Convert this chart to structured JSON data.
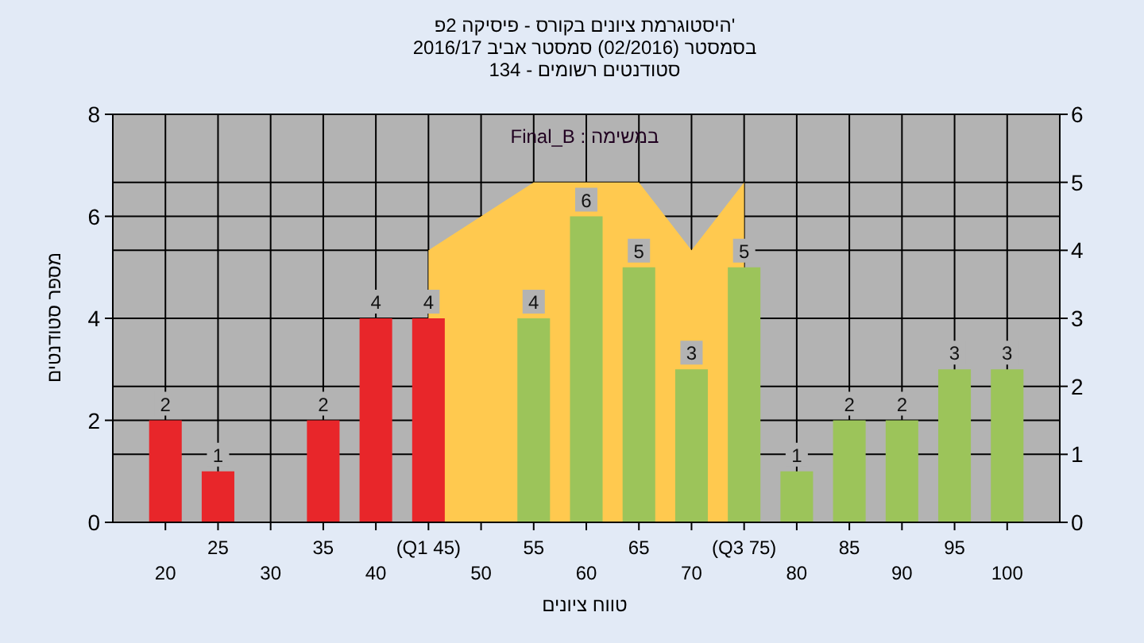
{
  "chart_data": {
    "type": "bar",
    "title": "'היסטוגרמת ציונים בקורס - פיסיקה 2פ",
    "subtitle": "בסמסטר  (02/2016)  סמסטר אביב 2016/17\nסטודנטים רשומים - 134",
    "xlabel": "טווח ציונים",
    "ylabel": "מספר סטודנטים",
    "annotations": [
      "במשימה : Final_B"
    ],
    "categories": [
      "20",
      "25",
      "30",
      "35",
      "40",
      "(Q1 45)",
      "50",
      "55",
      "60",
      "65",
      "70",
      "(Q3 75)",
      "80",
      "85",
      "90",
      "95",
      "100"
    ],
    "series": [
      {
        "values": [
          2,
          1,
          null,
          2,
          4,
          4,
          null,
          4,
          6,
          5,
          3,
          5,
          1,
          2,
          2,
          3,
          3
        ],
        "value_labels": [
          "2",
          "1",
          null,
          "2",
          "4",
          "4",
          null,
          "4",
          "6",
          "5",
          "3",
          "5",
          "1",
          "2",
          "2",
          "3",
          "3"
        ],
        "colors": [
          "#e8262a",
          "#e8262a",
          null,
          "#e8262a",
          "#e8262a",
          "#e8262a",
          null,
          "#9cc45a",
          "#9cc45a",
          "#9cc45a",
          "#9cc45a",
          "#9cc45a",
          "#9cc45a",
          "#9cc45a",
          "#9cc45a",
          "#9cc45a",
          "#9cc45a"
        ]
      },
      {
        "type": "area",
        "axis": "y2",
        "color": "#ffc94f",
        "values": [
          null,
          null,
          null,
          null,
          null,
          4,
          4.5,
          5,
          5,
          5,
          4,
          5,
          null,
          null,
          null,
          null,
          null
        ]
      }
    ],
    "ylim": [
      0,
      8
    ],
    "yticks": [
      0,
      2,
      4,
      6,
      8
    ],
    "y2lim": [
      0,
      6
    ],
    "y2ticks": [
      0,
      1,
      2,
      3,
      4,
      5,
      6
    ],
    "grid": true
  }
}
